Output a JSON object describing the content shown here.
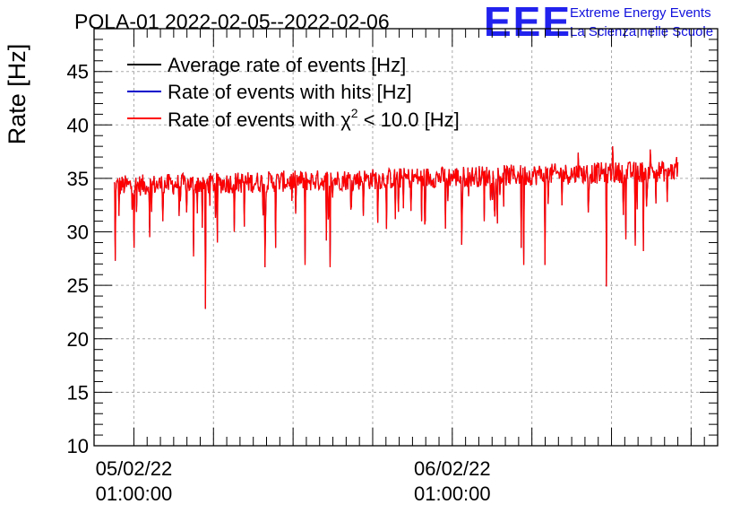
{
  "chart_data": {
    "type": "line",
    "title": "POLA-01 2022-02-05--2022-02-06",
    "xlabel": "",
    "ylabel": "Rate [Hz]",
    "ylim": [
      10,
      49
    ],
    "y_ticks": [
      10,
      15,
      20,
      25,
      30,
      35,
      40,
      45
    ],
    "x_range_hours": [
      -3.0,
      44.0
    ],
    "x_ticks": [
      {
        "hour": 0,
        "date": "05/02/22",
        "time": "01:00:00"
      },
      {
        "hour": 24,
        "date": "06/02/22",
        "time": "01:00:00"
      }
    ],
    "grid": true,
    "legend_position": "top-left",
    "series": [
      {
        "name": "Average rate of events [Hz]",
        "color": "#000000"
      },
      {
        "name": "Rate of events with hits [Hz]",
        "color": "#0000cc"
      },
      {
        "name_prefix": "Rate of events with ",
        "name_symbol": "χ",
        "name_sup": "2",
        "name_suffix": " < 10.0 [Hz]",
        "color": "#ff0000"
      }
    ],
    "data_x_start_hour": -1.5,
    "data_x_end_hour": 41.0,
    "baseline_start": 34.3,
    "baseline_end": 35.7,
    "noise_amplitude": 1.0,
    "dips": [
      {
        "hour": -1.4,
        "value": 27.3
      },
      {
        "hour": -1.1,
        "value": 31.5
      },
      {
        "hour": 0.0,
        "value": 28.5
      },
      {
        "hour": 1.2,
        "value": 29.5
      },
      {
        "hour": 2.2,
        "value": 31.0
      },
      {
        "hour": 4.5,
        "value": 27.7
      },
      {
        "hour": 5.4,
        "value": 22.8
      },
      {
        "hour": 6.3,
        "value": 29.0
      },
      {
        "hour": 8.3,
        "value": 30.5
      },
      {
        "hour": 9.9,
        "value": 26.7
      },
      {
        "hour": 10.7,
        "value": 28.5
      },
      {
        "hour": 12.9,
        "value": 26.9
      },
      {
        "hour": 14.5,
        "value": 29.2
      },
      {
        "hour": 14.8,
        "value": 26.7
      },
      {
        "hour": 17.3,
        "value": 31.5
      },
      {
        "hour": 19.7,
        "value": 31.2
      },
      {
        "hour": 21.7,
        "value": 31.0
      },
      {
        "hour": 23.5,
        "value": 30.3
      },
      {
        "hour": 24.7,
        "value": 28.8
      },
      {
        "hour": 26.4,
        "value": 31.0
      },
      {
        "hour": 29.2,
        "value": 28.5
      },
      {
        "hour": 29.4,
        "value": 26.9
      },
      {
        "hour": 31.0,
        "value": 26.9
      },
      {
        "hour": 35.6,
        "value": 24.9
      },
      {
        "hour": 37.1,
        "value": 29.3
      },
      {
        "hour": 37.8,
        "value": 28.7
      },
      {
        "hour": 38.4,
        "value": 28.2
      },
      {
        "hour": 40.2,
        "value": 32.8
      }
    ],
    "spikes": [
      {
        "hour": 36.1,
        "value": 38.0
      },
      {
        "hour": 38.9,
        "value": 37.7
      },
      {
        "hour": 33.5,
        "value": 37.4
      },
      {
        "hour": 40.9,
        "value": 37.0
      }
    ]
  },
  "logo": {
    "mark": "EEE",
    "line1": "Extreme Energy Events",
    "line2": "La Scienza nelle Scuole",
    "color": "#2222ee"
  }
}
